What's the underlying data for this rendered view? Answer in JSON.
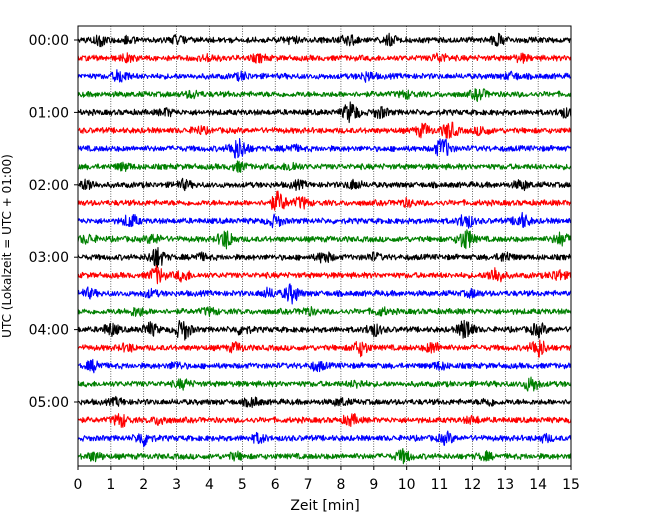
{
  "chart_data": {
    "type": "line",
    "title": "",
    "xlabel": "Zeit  [min]",
    "ylabel": "UTC (Lokalzeit = UTC + 01:00)",
    "xlim": [
      0,
      15
    ],
    "x_ticks": [
      "0",
      "1",
      "2",
      "3",
      "4",
      "5",
      "6",
      "7",
      "8",
      "9",
      "10",
      "11",
      "12",
      "13",
      "14",
      "15"
    ],
    "y_ticks": [
      "00:00",
      "01:00",
      "02:00",
      "03:00",
      "04:00",
      "05:00"
    ],
    "grid": "vertical dotted at each minute",
    "trace_interval_min": 15,
    "trace_colors": [
      "#000000",
      "#ff0000",
      "#0000ff",
      "#008000"
    ],
    "series": [
      {
        "start": "00:00",
        "color": "#000000",
        "bursts": [
          [
            0.7,
            0.5
          ],
          [
            1.5,
            0.3
          ],
          [
            3.0,
            0.3
          ],
          [
            6.5,
            0.3
          ],
          [
            8.2,
            0.5
          ],
          [
            9.5,
            0.4
          ],
          [
            12.8,
            0.5
          ]
        ]
      },
      {
        "start": "00:15",
        "color": "#ff0000",
        "bursts": [
          [
            1.5,
            0.3
          ],
          [
            4.0,
            0.3
          ],
          [
            5.5,
            0.3
          ],
          [
            11.0,
            0.4
          ],
          [
            13.5,
            0.3
          ]
        ]
      },
      {
        "start": "00:30",
        "color": "#0000ff",
        "bursts": [
          [
            1.3,
            0.6
          ],
          [
            5.0,
            0.3
          ],
          [
            8.8,
            0.4
          ],
          [
            13.2,
            0.3
          ]
        ]
      },
      {
        "start": "00:45",
        "color": "#008000",
        "bursts": [
          [
            3.5,
            0.3
          ],
          [
            10.0,
            0.3
          ],
          [
            12.2,
            0.5
          ]
        ]
      },
      {
        "start": "01:00",
        "color": "#000000",
        "bursts": [
          [
            2.7,
            0.3
          ],
          [
            8.3,
            1.0
          ],
          [
            9.2,
            0.5
          ],
          [
            14.8,
            0.4
          ]
        ]
      },
      {
        "start": "01:15",
        "color": "#ff0000",
        "bursts": [
          [
            3.7,
            0.3
          ],
          [
            10.5,
            0.6
          ],
          [
            11.3,
            0.8
          ],
          [
            12.3,
            0.4
          ]
        ]
      },
      {
        "start": "01:30",
        "color": "#0000ff",
        "bursts": [
          [
            4.8,
            0.7
          ],
          [
            5.0,
            0.5
          ],
          [
            6.5,
            0.3
          ],
          [
            11.1,
            1.0
          ]
        ]
      },
      {
        "start": "01:45",
        "color": "#008000",
        "bursts": [
          [
            1.4,
            0.3
          ],
          [
            4.9,
            0.4
          ],
          [
            6.5,
            0.4
          ]
        ]
      },
      {
        "start": "02:00",
        "color": "#000000",
        "bursts": [
          [
            0.3,
            0.5
          ],
          [
            3.2,
            0.4
          ],
          [
            6.7,
            0.3
          ],
          [
            8.4,
            0.4
          ],
          [
            13.5,
            0.4
          ]
        ]
      },
      {
        "start": "02:15",
        "color": "#ff0000",
        "bursts": [
          [
            6.1,
            1.0
          ],
          [
            6.8,
            0.5
          ],
          [
            10.0,
            0.3
          ]
        ]
      },
      {
        "start": "02:30",
        "color": "#0000ff",
        "bursts": [
          [
            1.6,
            0.6
          ],
          [
            6.0,
            0.5
          ],
          [
            11.8,
            0.7
          ],
          [
            13.5,
            0.7
          ]
        ]
      },
      {
        "start": "02:45",
        "color": "#008000",
        "bursts": [
          [
            0.3,
            0.4
          ],
          [
            2.3,
            0.4
          ],
          [
            4.5,
            0.9
          ],
          [
            11.8,
            1.0
          ],
          [
            14.7,
            0.6
          ]
        ]
      },
      {
        "start": "03:00",
        "color": "#000000",
        "bursts": [
          [
            2.4,
            1.0
          ],
          [
            3.7,
            0.3
          ],
          [
            7.5,
            0.5
          ],
          [
            9.0,
            0.3
          ],
          [
            13.0,
            0.4
          ]
        ]
      },
      {
        "start": "03:15",
        "color": "#ff0000",
        "bursts": [
          [
            2.4,
            0.8
          ],
          [
            3.2,
            0.5
          ],
          [
            12.7,
            0.8
          ],
          [
            14.6,
            0.5
          ]
        ]
      },
      {
        "start": "03:30",
        "color": "#0000ff",
        "bursts": [
          [
            0.3,
            0.4
          ],
          [
            2.2,
            0.3
          ],
          [
            6.5,
            0.9
          ],
          [
            5.8,
            0.4
          ],
          [
            12.0,
            0.3
          ]
        ]
      },
      {
        "start": "03:45",
        "color": "#008000",
        "bursts": [
          [
            1.8,
            0.4
          ],
          [
            4.0,
            0.3
          ],
          [
            7.0,
            0.3
          ],
          [
            9.2,
            0.3
          ]
        ]
      },
      {
        "start": "04:00",
        "color": "#000000",
        "bursts": [
          [
            1.0,
            0.6
          ],
          [
            2.2,
            0.6
          ],
          [
            3.2,
            1.0
          ],
          [
            5.0,
            0.4
          ],
          [
            9.0,
            0.6
          ],
          [
            11.8,
            1.0
          ],
          [
            14.0,
            0.6
          ]
        ]
      },
      {
        "start": "04:15",
        "color": "#ff0000",
        "bursts": [
          [
            1.5,
            0.3
          ],
          [
            4.8,
            0.4
          ],
          [
            8.6,
            0.7
          ],
          [
            10.8,
            0.5
          ],
          [
            14.0,
            0.9
          ]
        ]
      },
      {
        "start": "04:30",
        "color": "#0000ff",
        "bursts": [
          [
            0.5,
            0.5
          ],
          [
            3.0,
            0.3
          ],
          [
            7.3,
            0.4
          ],
          [
            11.0,
            0.3
          ]
        ]
      },
      {
        "start": "04:45",
        "color": "#008000",
        "bursts": [
          [
            3.2,
            0.4
          ],
          [
            8.5,
            0.3
          ],
          [
            13.8,
            0.7
          ]
        ]
      },
      {
        "start": "05:00",
        "color": "#000000",
        "bursts": [
          [
            1.2,
            0.3
          ],
          [
            5.3,
            0.4
          ],
          [
            8.0,
            0.3
          ],
          [
            12.5,
            0.3
          ]
        ]
      },
      {
        "start": "05:15",
        "color": "#ff0000",
        "bursts": [
          [
            1.3,
            0.6
          ],
          [
            2.5,
            0.4
          ],
          [
            8.3,
            0.5
          ],
          [
            12.0,
            0.3
          ]
        ]
      },
      {
        "start": "05:30",
        "color": "#0000ff",
        "bursts": [
          [
            2.0,
            0.7
          ],
          [
            5.5,
            0.4
          ],
          [
            11.2,
            0.5
          ],
          [
            14.2,
            0.3
          ]
        ]
      },
      {
        "start": "05:45",
        "color": "#008000",
        "bursts": [
          [
            0.5,
            0.4
          ],
          [
            4.8,
            0.3
          ],
          [
            9.9,
            0.6
          ],
          [
            12.4,
            0.3
          ]
        ]
      }
    ]
  }
}
